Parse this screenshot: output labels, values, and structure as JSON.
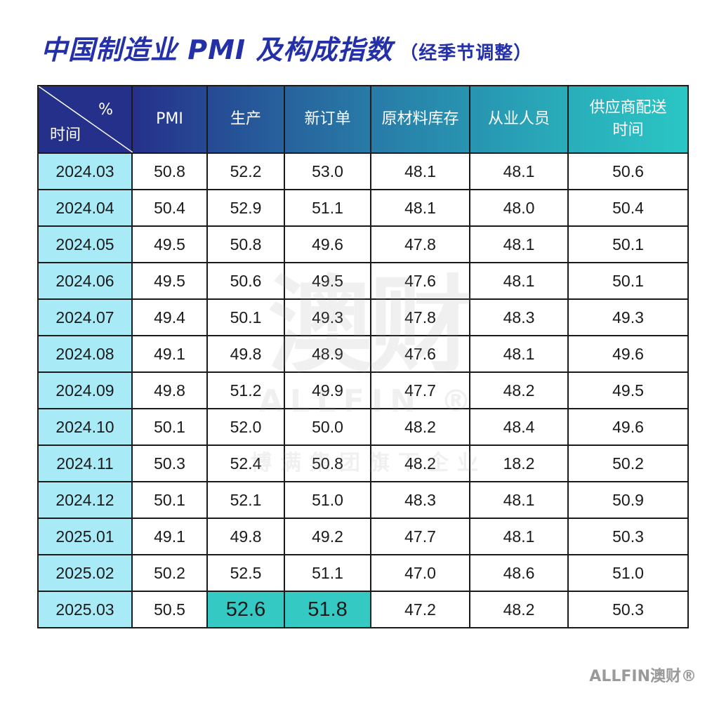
{
  "title": {
    "main": "中国制造业 PMI 及构成指数",
    "sub": "（经季节调整）"
  },
  "colors": {
    "title": "#2330a8",
    "date_cell": "#a9eaf7",
    "highlight": "#34c9c2",
    "header_start": "#25308a",
    "header_end": "#2ac6c4"
  },
  "chart_data": {
    "type": "table",
    "corner": {
      "unit": "%",
      "row_label": "时间"
    },
    "columns": [
      "PMI",
      "生产",
      "新订单",
      "原材料库存",
      "从业人员",
      "供应商配送时间"
    ],
    "rows": [
      {
        "date": "2024.03",
        "values": [
          "50.8",
          "52.2",
          "53.0",
          "48.1",
          "48.1",
          "50.6"
        ]
      },
      {
        "date": "2024.04",
        "values": [
          "50.4",
          "52.9",
          "51.1",
          "48.1",
          "48.0",
          "50.4"
        ]
      },
      {
        "date": "2024.05",
        "values": [
          "49.5",
          "50.8",
          "49.6",
          "47.8",
          "48.1",
          "50.1"
        ]
      },
      {
        "date": "2024.06",
        "values": [
          "49.5",
          "50.6",
          "49.5",
          "47.6",
          "48.1",
          "50.1"
        ]
      },
      {
        "date": "2024.07",
        "values": [
          "49.4",
          "50.1",
          "49.3",
          "47.8",
          "48.3",
          "49.3"
        ]
      },
      {
        "date": "2024.08",
        "values": [
          "49.1",
          "49.8",
          "48.9",
          "47.6",
          "48.1",
          "49.6"
        ]
      },
      {
        "date": "2024.09",
        "values": [
          "49.8",
          "51.2",
          "49.9",
          "47.7",
          "48.2",
          "49.5"
        ]
      },
      {
        "date": "2024.10",
        "values": [
          "50.1",
          "52.0",
          "50.0",
          "48.2",
          "48.4",
          "49.6"
        ]
      },
      {
        "date": "2024.11",
        "values": [
          "50.3",
          "52.4",
          "50.8",
          "48.2",
          "18.2",
          "50.2"
        ]
      },
      {
        "date": "2024.12",
        "values": [
          "50.1",
          "52.1",
          "51.0",
          "48.3",
          "48.1",
          "50.9"
        ]
      },
      {
        "date": "2025.01",
        "values": [
          "49.1",
          "49.8",
          "49.2",
          "47.7",
          "48.1",
          "50.3"
        ]
      },
      {
        "date": "2025.02",
        "values": [
          "50.2",
          "52.5",
          "51.1",
          "47.0",
          "48.6",
          "51.0"
        ]
      },
      {
        "date": "2025.03",
        "values": [
          "50.5",
          "52.6",
          "51.8",
          "47.2",
          "48.2",
          "50.3"
        ]
      }
    ],
    "highlighted_cells": [
      [
        12,
        1
      ],
      [
        12,
        2
      ]
    ]
  },
  "watermark": {
    "main": "澳财",
    "en": "ALLFIN ®",
    "sub": "博满集团旗下企业"
  },
  "footer": {
    "logo": "ALLFIN澳财®"
  }
}
